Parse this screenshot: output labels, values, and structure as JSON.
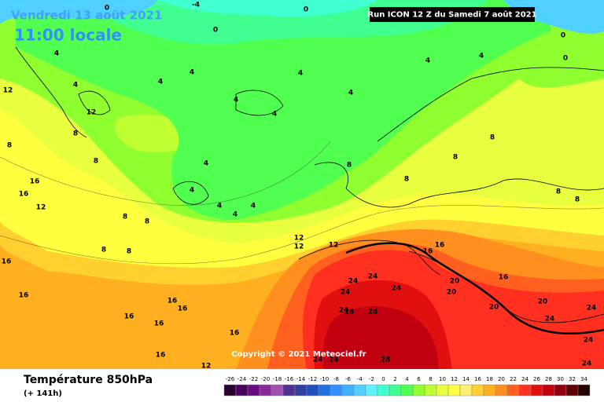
{
  "header": {
    "date": "Vendredi 13 août 2021",
    "time": "11:00 locale",
    "run": "Run ICON 12 Z du Samedi 7 août 2021"
  },
  "copyright": "Copyright © 2021 Meteociel.fr",
  "footer": {
    "title": "Température 850hPa",
    "step": "(+ 141h)"
  },
  "colorbar": {
    "values": [
      -26,
      -24,
      -22,
      -20,
      -18,
      -16,
      -14,
      -12,
      -10,
      -8,
      -6,
      -4,
      -2,
      0,
      2,
      4,
      6,
      8,
      10,
      12,
      14,
      16,
      18,
      20,
      22,
      24,
      26,
      28,
      30,
      32,
      34
    ],
    "colors": [
      "#2a0030",
      "#4a0060",
      "#6a0a80",
      "#8a2a9a",
      "#a050b0",
      "#503090",
      "#3040a0",
      "#2050c0",
      "#2070e0",
      "#3090ff",
      "#40b0ff",
      "#50d0ff",
      "#60f0ff",
      "#40ffd0",
      "#40ff90",
      "#50ff50",
      "#90ff30",
      "#c0ff30",
      "#e8ff40",
      "#ffff40",
      "#fff070",
      "#ffd030",
      "#ffb020",
      "#ff9020",
      "#ff6020",
      "#ff3020",
      "#e01010",
      "#c00010",
      "#900010",
      "#600000",
      "#200000"
    ]
  },
  "map_labels": [
    -4,
    0,
    0,
    0,
    0,
    0,
    4,
    4,
    4,
    4,
    4,
    4,
    4,
    4,
    4,
    4,
    12,
    12,
    8,
    8,
    8,
    4,
    4,
    4,
    4,
    4,
    8,
    8,
    8,
    8,
    8,
    8,
    16,
    12,
    16,
    8,
    8,
    8,
    8,
    12,
    12,
    12,
    16,
    16,
    16,
    16,
    16,
    16,
    16,
    16,
    16,
    16,
    12,
    24,
    24,
    24,
    24,
    24,
    20,
    20,
    20,
    20,
    24,
    24,
    24,
    28,
    28,
    28,
    24,
    24,
    24,
    16
  ]
}
